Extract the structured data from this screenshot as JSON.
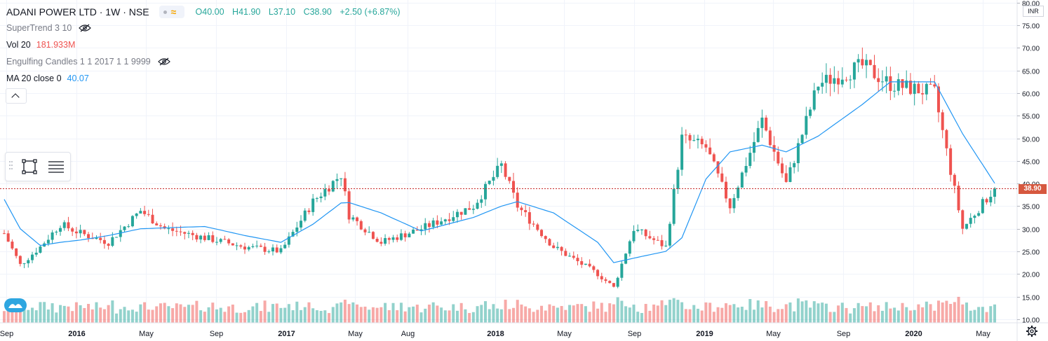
{
  "header": {
    "symbol": "ADANI POWER LTD · 1W · NSE",
    "open": "O40.00",
    "high": "H41.90",
    "low": "L37.10",
    "close": "C38.90",
    "change": "+2.50 (+6.87%)"
  },
  "indicators": [
    {
      "label": "SuperTrend 3 10",
      "value": "",
      "hidden": true
    },
    {
      "label": "Vol 20",
      "value": "181.933M",
      "value_color": "#ef5350",
      "hidden": false
    },
    {
      "label": "Engulfing Candles 1 1 2017 1 1 9999",
      "value": "",
      "hidden": true
    },
    {
      "label": "MA 20 close 0",
      "value": "40.07",
      "value_color": "#2196f3",
      "hidden": false
    }
  ],
  "currency": "INR",
  "last_price_label": "38.90",
  "icons": [
    "collapse-chevron-icon",
    "eye-hidden-icon",
    "rectangle-tool-icon",
    "hamburger-menu-icon",
    "settings-gear-icon",
    "logo-icon"
  ],
  "colors": {
    "up": "#26a69a",
    "down": "#ef5350",
    "ma": "#2196f3",
    "last_price_line": "#c62828",
    "grid": "#f0f3fa"
  },
  "chart_data": {
    "type": "candlestick",
    "title": "ADANI POWER LTD · 1W · NSE",
    "y_ticks": [
      "10.00",
      "15.00",
      "20.00",
      "25.00",
      "30.00",
      "35.00",
      "40.00",
      "45.00",
      "50.00",
      "55.00",
      "60.00",
      "65.00",
      "70.00",
      "75.00",
      "80.00"
    ],
    "ylim": [
      9.2,
      80.6
    ],
    "x_labels": [
      "Sep",
      "2016",
      "May",
      "Sep",
      "2017",
      "May",
      "Aug",
      "2018",
      "May",
      "Sep",
      "2019",
      "May",
      "Sep",
      "2020",
      "May"
    ],
    "x_range": [
      "2015-08-28",
      "2020-05-22"
    ],
    "last_close": 38.9,
    "grid": true,
    "price_series": [
      {
        "date": "2015-08-28",
        "close": 29.0,
        "ma20": 36.5
      },
      {
        "date": "2015-09-25",
        "close": 22.0,
        "ma20": 30.0
      },
      {
        "date": "2015-10-30",
        "close": 26.0,
        "ma20": 26.3
      },
      {
        "date": "2015-12-04",
        "close": 31.0,
        "ma20": 27.0
      },
      {
        "date": "2016-01-08",
        "close": 29.0,
        "ma20": 27.5
      },
      {
        "date": "2016-02-26",
        "close": 27.0,
        "ma20": 28.5
      },
      {
        "date": "2016-04-22",
        "close": 34.0,
        "ma20": 30.0
      },
      {
        "date": "2016-06-03",
        "close": 30.0,
        "ma20": 30.2
      },
      {
        "date": "2016-08-12",
        "close": 28.0,
        "ma20": 30.5
      },
      {
        "date": "2016-10-21",
        "close": 26.0,
        "ma20": 28.5
      },
      {
        "date": "2016-12-23",
        "close": 25.0,
        "ma20": 27.0
      },
      {
        "date": "2017-02-17",
        "close": 36.0,
        "ma20": 31.0
      },
      {
        "date": "2017-04-07",
        "close": 42.0,
        "ma20": 35.7
      },
      {
        "date": "2017-04-21",
        "close": 33.0,
        "ma20": 35.8
      },
      {
        "date": "2017-06-16",
        "close": 27.0,
        "ma20": 33.5
      },
      {
        "date": "2017-08-25",
        "close": 30.0,
        "ma20": 29.5
      },
      {
        "date": "2017-11-24",
        "close": 35.0,
        "ma20": 32.5
      },
      {
        "date": "2018-01-12",
        "close": 44.0,
        "ma20": 35.0
      },
      {
        "date": "2018-02-09",
        "close": 35.0,
        "ma20": 36.0
      },
      {
        "date": "2018-04-13",
        "close": 26.0,
        "ma20": 33.5
      },
      {
        "date": "2018-06-29",
        "close": 20.0,
        "ma20": 27.0
      },
      {
        "date": "2018-07-27",
        "close": 17.0,
        "ma20": 22.5
      },
      {
        "date": "2018-08-31",
        "close": 30.0,
        "ma20": 23.5
      },
      {
        "date": "2018-10-26",
        "close": 26.0,
        "ma20": 25.0
      },
      {
        "date": "2018-11-23",
        "close": 50.0,
        "ma20": 28.0
      },
      {
        "date": "2019-01-04",
        "close": 48.0,
        "ma20": 41.0
      },
      {
        "date": "2019-02-15",
        "close": 35.0,
        "ma20": 47.0
      },
      {
        "date": "2019-04-12",
        "close": 54.0,
        "ma20": 48.5
      },
      {
        "date": "2019-05-24",
        "close": 40.0,
        "ma20": 47.0
      },
      {
        "date": "2019-07-19",
        "close": 62.0,
        "ma20": 50.5
      },
      {
        "date": "2019-10-04",
        "close": 66.0,
        "ma20": 57.5
      },
      {
        "date": "2019-11-22",
        "close": 62.0,
        "ma20": 62.5
      },
      {
        "date": "2020-02-07",
        "close": 60.0,
        "ma20": 62.5
      },
      {
        "date": "2020-03-27",
        "close": 30.0,
        "ma20": 51.0
      },
      {
        "date": "2020-05-22",
        "close": 38.9,
        "ma20": 40.07
      }
    ]
  }
}
